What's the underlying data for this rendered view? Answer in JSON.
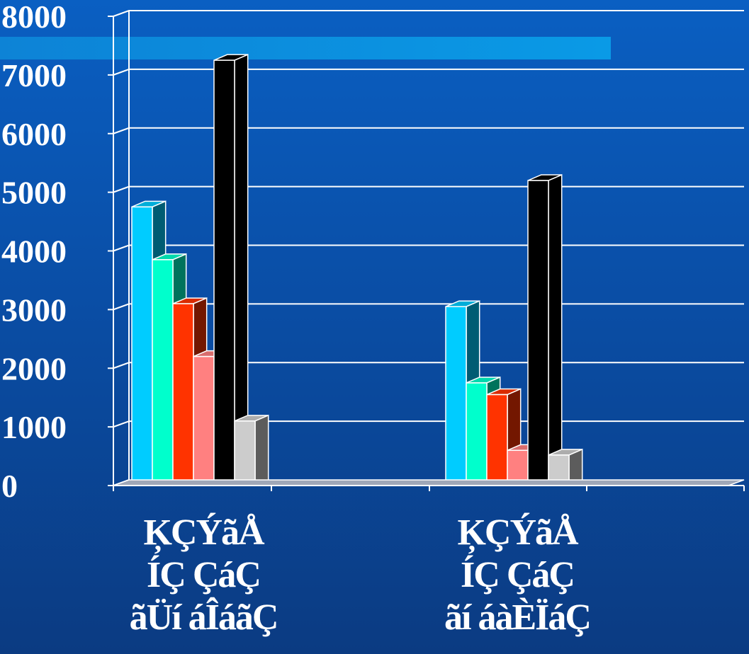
{
  "chart_data": {
    "type": "bar",
    "title": "",
    "xlabel": "",
    "ylabel": "",
    "ylim": [
      0,
      8000
    ],
    "yticks": [
      "0",
      "1000",
      "2000",
      "3000",
      "4000",
      "5000",
      "6000",
      "7000",
      "8000"
    ],
    "grid": true,
    "legend": false,
    "categories": [
      [
        "ĶÇÝãÅ",
        "ÍÇ ÇáÇ",
        "ãÜí áÎáãÇ"
      ],
      [
        "ĶÇÝãÅ",
        "ÍÇ ÇáÇ",
        "ãí áàÈÏáÇ"
      ]
    ],
    "series": [
      {
        "values": [
          4750,
          3050
        ],
        "color": "#00ccff"
      },
      {
        "values": [
          3850,
          1750
        ],
        "color": "#00ffcc"
      },
      {
        "values": [
          3100,
          1550
        ],
        "color": "#ff3300"
      },
      {
        "values": [
          2200,
          600
        ],
        "color": "#ff8080"
      },
      {
        "values": [
          7250,
          5200
        ],
        "color": "#000000"
      },
      {
        "values": [
          1100,
          520
        ],
        "color": "#cccccc"
      }
    ]
  }
}
